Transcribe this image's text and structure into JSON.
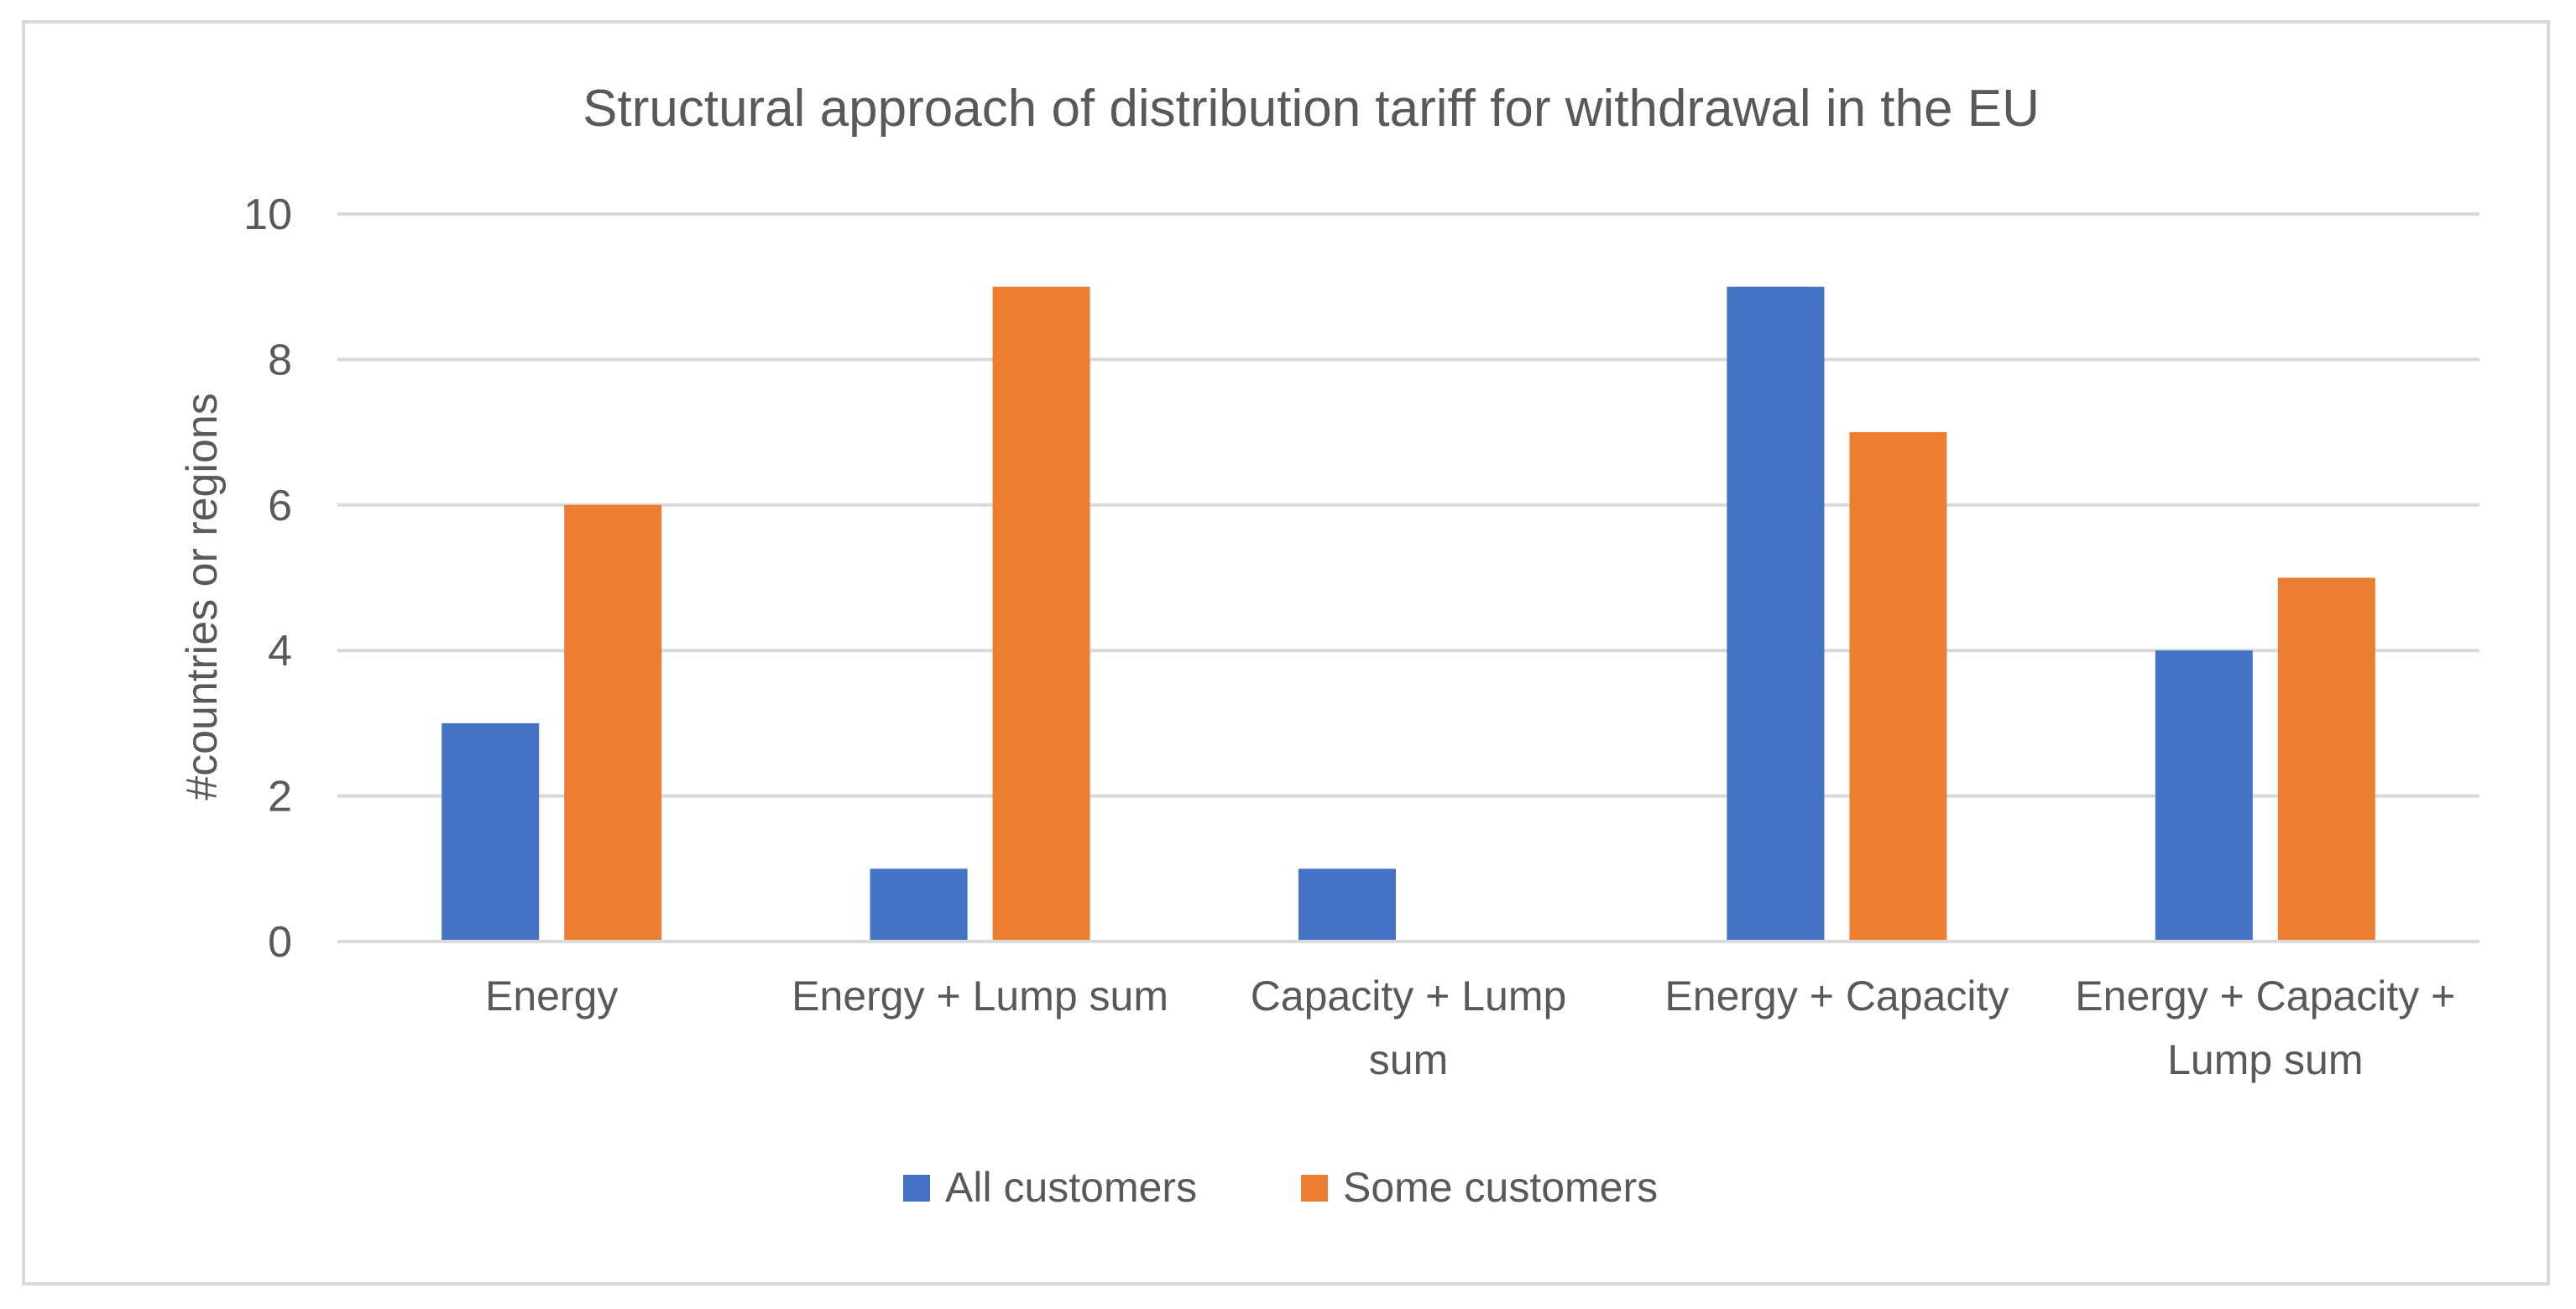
{
  "chart_data": {
    "type": "bar",
    "title": "Structural approach of distribution tariff for withdrawal in the EU",
    "xlabel": "",
    "ylabel": "#countries or regions",
    "categories": [
      [
        "Energy"
      ],
      [
        "Energy + Lump sum"
      ],
      [
        "Capacity + Lump",
        "sum"
      ],
      [
        "Energy + Capacity"
      ],
      [
        "Energy + Capacity +",
        "Lump sum"
      ]
    ],
    "series": [
      {
        "name": "All customers",
        "color": "#4472C4",
        "values": [
          3,
          1,
          1,
          9,
          4
        ]
      },
      {
        "name": "Some customers",
        "color": "#ED7D31",
        "values": [
          6,
          9,
          0,
          7,
          5
        ]
      }
    ],
    "ylim": [
      0,
      10
    ],
    "yticks": [
      0,
      2,
      4,
      6,
      8,
      10
    ],
    "grid": true,
    "legend_position": "bottom"
  }
}
